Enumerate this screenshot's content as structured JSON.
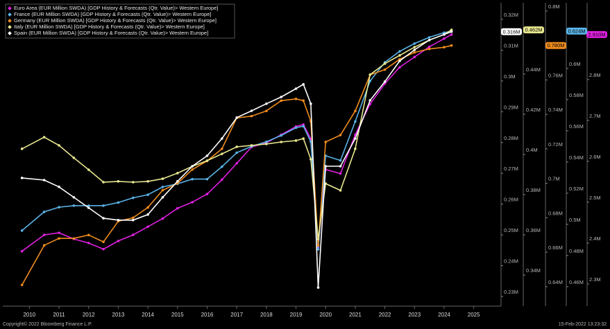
{
  "chart_data": {
    "type": "line",
    "x": [
      2010.25,
      2011,
      2011.5,
      2012,
      2012.5,
      2013,
      2013.5,
      2014,
      2014.5,
      2015,
      2015.5,
      2016,
      2016.5,
      2017,
      2017.5,
      2018,
      2018.5,
      2019,
      2019.5,
      2019.75,
      2020,
      2020.25,
      2020.5,
      2021,
      2021.5,
      2022,
      2022.5,
      2023,
      2023.5,
      2024,
      2024.5,
      2024.75
    ],
    "xlim": [
      2010,
      2026
    ],
    "xticks": [
      {
        "value": 2010.5,
        "label": "2010"
      },
      {
        "value": 2011.5,
        "label": "2011"
      },
      {
        "value": 2012.5,
        "label": "2012"
      },
      {
        "value": 2013.5,
        "label": "2013"
      },
      {
        "value": 2014.5,
        "label": "2014"
      },
      {
        "value": 2015.5,
        "label": "2015"
      },
      {
        "value": 2016.5,
        "label": "2016"
      },
      {
        "value": 2017.5,
        "label": "2017"
      },
      {
        "value": 2018.5,
        "label": "2018"
      },
      {
        "value": 2019.5,
        "label": "2019"
      },
      {
        "value": 2020.5,
        "label": "2020"
      },
      {
        "value": 2021.5,
        "label": "2021"
      },
      {
        "value": 2022.5,
        "label": "2022"
      },
      {
        "value": 2023.5,
        "label": "2023"
      },
      {
        "value": 2024.5,
        "label": "2024"
      },
      {
        "value": 2025.5,
        "label": "2025"
      }
    ],
    "y_axes": [
      {
        "ylim": [
          0.2273,
          0.3245
        ],
        "yticks": [
          {
            "value": 0.23,
            "label": "0.23M"
          },
          {
            "value": 0.24,
            "label": "0.24M"
          },
          {
            "value": 0.25,
            "label": "0.25M"
          },
          {
            "value": 0.26,
            "label": "0.26M"
          },
          {
            "value": 0.27,
            "label": "0.27M"
          },
          {
            "value": 0.28,
            "label": "0.28M"
          },
          {
            "value": 0.29,
            "label": "0.29M"
          },
          {
            "value": 0.3,
            "label": "0.3M"
          },
          {
            "value": 0.31,
            "label": "0.31M"
          },
          {
            "value": 0.32,
            "label": "0.32M"
          }
        ]
      },
      {
        "ylim": [
          0.3252,
          0.4741
        ],
        "yticks": [
          {
            "value": 0.34,
            "label": "0.34M"
          },
          {
            "value": 0.36,
            "label": "0.36M"
          },
          {
            "value": 0.38,
            "label": "0.38M"
          },
          {
            "value": 0.4,
            "label": "0.4M"
          },
          {
            "value": 0.42,
            "label": "0.42M"
          },
          {
            "value": 0.44,
            "label": "0.44M"
          }
        ]
      },
      {
        "ylim": [
          0.6295,
          0.8032
        ],
        "yticks": [
          {
            "value": 0.64,
            "label": "0.64M"
          },
          {
            "value": 0.66,
            "label": "0.66M"
          },
          {
            "value": 0.68,
            "label": "0.68M"
          },
          {
            "value": 0.7,
            "label": "0.7M"
          },
          {
            "value": 0.72,
            "label": "0.72M"
          },
          {
            "value": 0.74,
            "label": "0.74M"
          },
          {
            "value": 0.76,
            "label": "0.76M"
          },
          {
            "value": 0.8,
            "label": "0.8M"
          }
        ]
      },
      {
        "ylim": [
          0.4484,
          0.6404
        ],
        "yticks": [
          {
            "value": 0.46,
            "label": "0.46M"
          },
          {
            "value": 0.48,
            "label": "0.48M"
          },
          {
            "value": 0.5,
            "label": "0.5M"
          },
          {
            "value": 0.52,
            "label": "0.52M"
          },
          {
            "value": 0.54,
            "label": "0.54M"
          },
          {
            "value": 0.56,
            "label": "0.56M"
          },
          {
            "value": 0.58,
            "label": "0.58M"
          },
          {
            "value": 0.6,
            "label": "0.6M"
          }
        ]
      },
      {
        "ylim": [
          2.249,
          2.981
        ],
        "yticks": [
          {
            "value": 2.3,
            "label": "2.3M"
          },
          {
            "value": 2.4,
            "label": "2.4M"
          },
          {
            "value": 2.5,
            "label": "2.5M"
          },
          {
            "value": 2.6,
            "label": "2.6M"
          },
          {
            "value": 2.7,
            "label": "2.7M"
          },
          {
            "value": 2.8,
            "label": "2.8M"
          }
        ]
      }
    ],
    "series": [
      {
        "name": "Euro Area (EUR Million SWDA) [GDP History & Forecasts (Qtr. Value)> Western Europe]",
        "color": "#e020e0",
        "axis": 4,
        "values": [
          2.38,
          2.42,
          2.425,
          2.41,
          2.4,
          2.385,
          2.405,
          2.42,
          2.44,
          2.46,
          2.485,
          2.5,
          2.52,
          2.555,
          2.595,
          2.635,
          2.645,
          2.665,
          2.685,
          2.69,
          2.655,
          2.39,
          2.58,
          2.57,
          2.665,
          2.74,
          2.79,
          2.83,
          2.855,
          2.88,
          2.9,
          2.91
        ],
        "value_labels": [
          null,
          null,
          null,
          null,
          null,
          null,
          null,
          null,
          null,
          null,
          null,
          null,
          null,
          null,
          null,
          null,
          null,
          null,
          null,
          null,
          null,
          null,
          null,
          null,
          null,
          null,
          null,
          null,
          null,
          null,
          null,
          "2.910M"
        ]
      },
      {
        "name": "France (EUR Million SWDA) [GDP History & Forecasts (Qtr. Value)> Western Europe]",
        "color": "#5ab4e8",
        "axis": 3,
        "values": [
          0.496,
          0.508,
          0.511,
          0.512,
          0.512,
          0.512,
          0.514,
          0.517,
          0.519,
          0.524,
          0.526,
          0.529,
          0.529,
          0.537,
          0.546,
          0.55,
          0.553,
          0.557,
          0.562,
          0.563,
          0.553,
          0.484,
          0.544,
          0.541,
          0.566,
          0.592,
          0.604,
          0.611,
          0.616,
          0.62,
          0.623,
          0.624
        ],
        "value_labels": [
          null,
          null,
          null,
          null,
          null,
          null,
          null,
          null,
          null,
          null,
          null,
          null,
          null,
          null,
          null,
          null,
          null,
          null,
          null,
          null,
          null,
          null,
          null,
          null,
          null,
          null,
          null,
          null,
          null,
          null,
          null,
          "0.624M"
        ]
      },
      {
        "name": "Germany (EUR Million SWDA) [GDP History & Forecasts (Qtr. Value)> Western Europe]",
        "color": "#f08c1e",
        "axis": 2,
        "values": [
          0.641,
          0.664,
          0.668,
          0.668,
          0.67,
          0.666,
          0.678,
          0.68,
          0.686,
          0.696,
          0.7,
          0.708,
          0.713,
          0.72,
          0.738,
          0.739,
          0.742,
          0.748,
          0.749,
          0.748,
          0.736,
          0.664,
          0.724,
          0.728,
          0.742,
          0.763,
          0.766,
          0.772,
          0.776,
          0.778,
          0.779,
          0.78
        ],
        "value_labels": [
          null,
          null,
          null,
          null,
          null,
          null,
          null,
          null,
          null,
          null,
          null,
          null,
          null,
          null,
          null,
          null,
          null,
          null,
          null,
          null,
          null,
          null,
          null,
          null,
          null,
          null,
          null,
          null,
          null,
          null,
          null,
          "0.780M"
        ]
      },
      {
        "name": "Italy (EUR Million SWDA) [GDP History & Forecasts (Qtr. Value)> Western Europe]",
        "color": "#e8e890",
        "axis": 1,
        "values": [
          0.4028,
          0.4086,
          0.4045,
          0.3983,
          0.3924,
          0.3862,
          0.3866,
          0.3862,
          0.3866,
          0.3879,
          0.3907,
          0.3941,
          0.3969,
          0.4003,
          0.4038,
          0.4045,
          0.4052,
          0.4062,
          0.4069,
          0.4079,
          0.3976,
          0.3579,
          0.3855,
          0.3821,
          0.4028,
          0.4397,
          0.4452,
          0.4493,
          0.4534,
          0.4569,
          0.4597,
          0.462
        ],
        "value_labels": [
          null,
          null,
          null,
          null,
          null,
          null,
          null,
          null,
          null,
          null,
          null,
          null,
          null,
          null,
          null,
          null,
          null,
          null,
          null,
          null,
          null,
          null,
          null,
          null,
          null,
          null,
          null,
          null,
          null,
          null,
          null,
          "0.462M"
        ]
      },
      {
        "name": "Spain (EUR Million SWDA) [GDP History & Forecasts (Qtr. Value)> Western Europe]",
        "color": "#ffffff",
        "axis": 0,
        "values": [
          0.2685,
          0.2678,
          0.2656,
          0.2622,
          0.2588,
          0.2554,
          0.2548,
          0.2548,
          0.2566,
          0.2622,
          0.2674,
          0.2723,
          0.2757,
          0.2813,
          0.2881,
          0.2903,
          0.2926,
          0.2948,
          0.2975,
          0.2989,
          0.2926,
          0.2329,
          0.2723,
          0.2723,
          0.2813,
          0.2937,
          0.2998,
          0.3065,
          0.3101,
          0.3133,
          0.3151,
          0.316
        ],
        "value_labels": [
          null,
          null,
          null,
          null,
          null,
          null,
          null,
          null,
          null,
          null,
          null,
          null,
          null,
          null,
          null,
          null,
          null,
          null,
          null,
          null,
          null,
          null,
          null,
          null,
          null,
          null,
          null,
          null,
          null,
          null,
          null,
          "0.316M"
        ]
      }
    ],
    "legend_position": "upper left",
    "footer_left": "Copyright© 2022 Bloomberg Finance L.P.",
    "footer_right": "15-Feb-2022 13:23:32"
  }
}
